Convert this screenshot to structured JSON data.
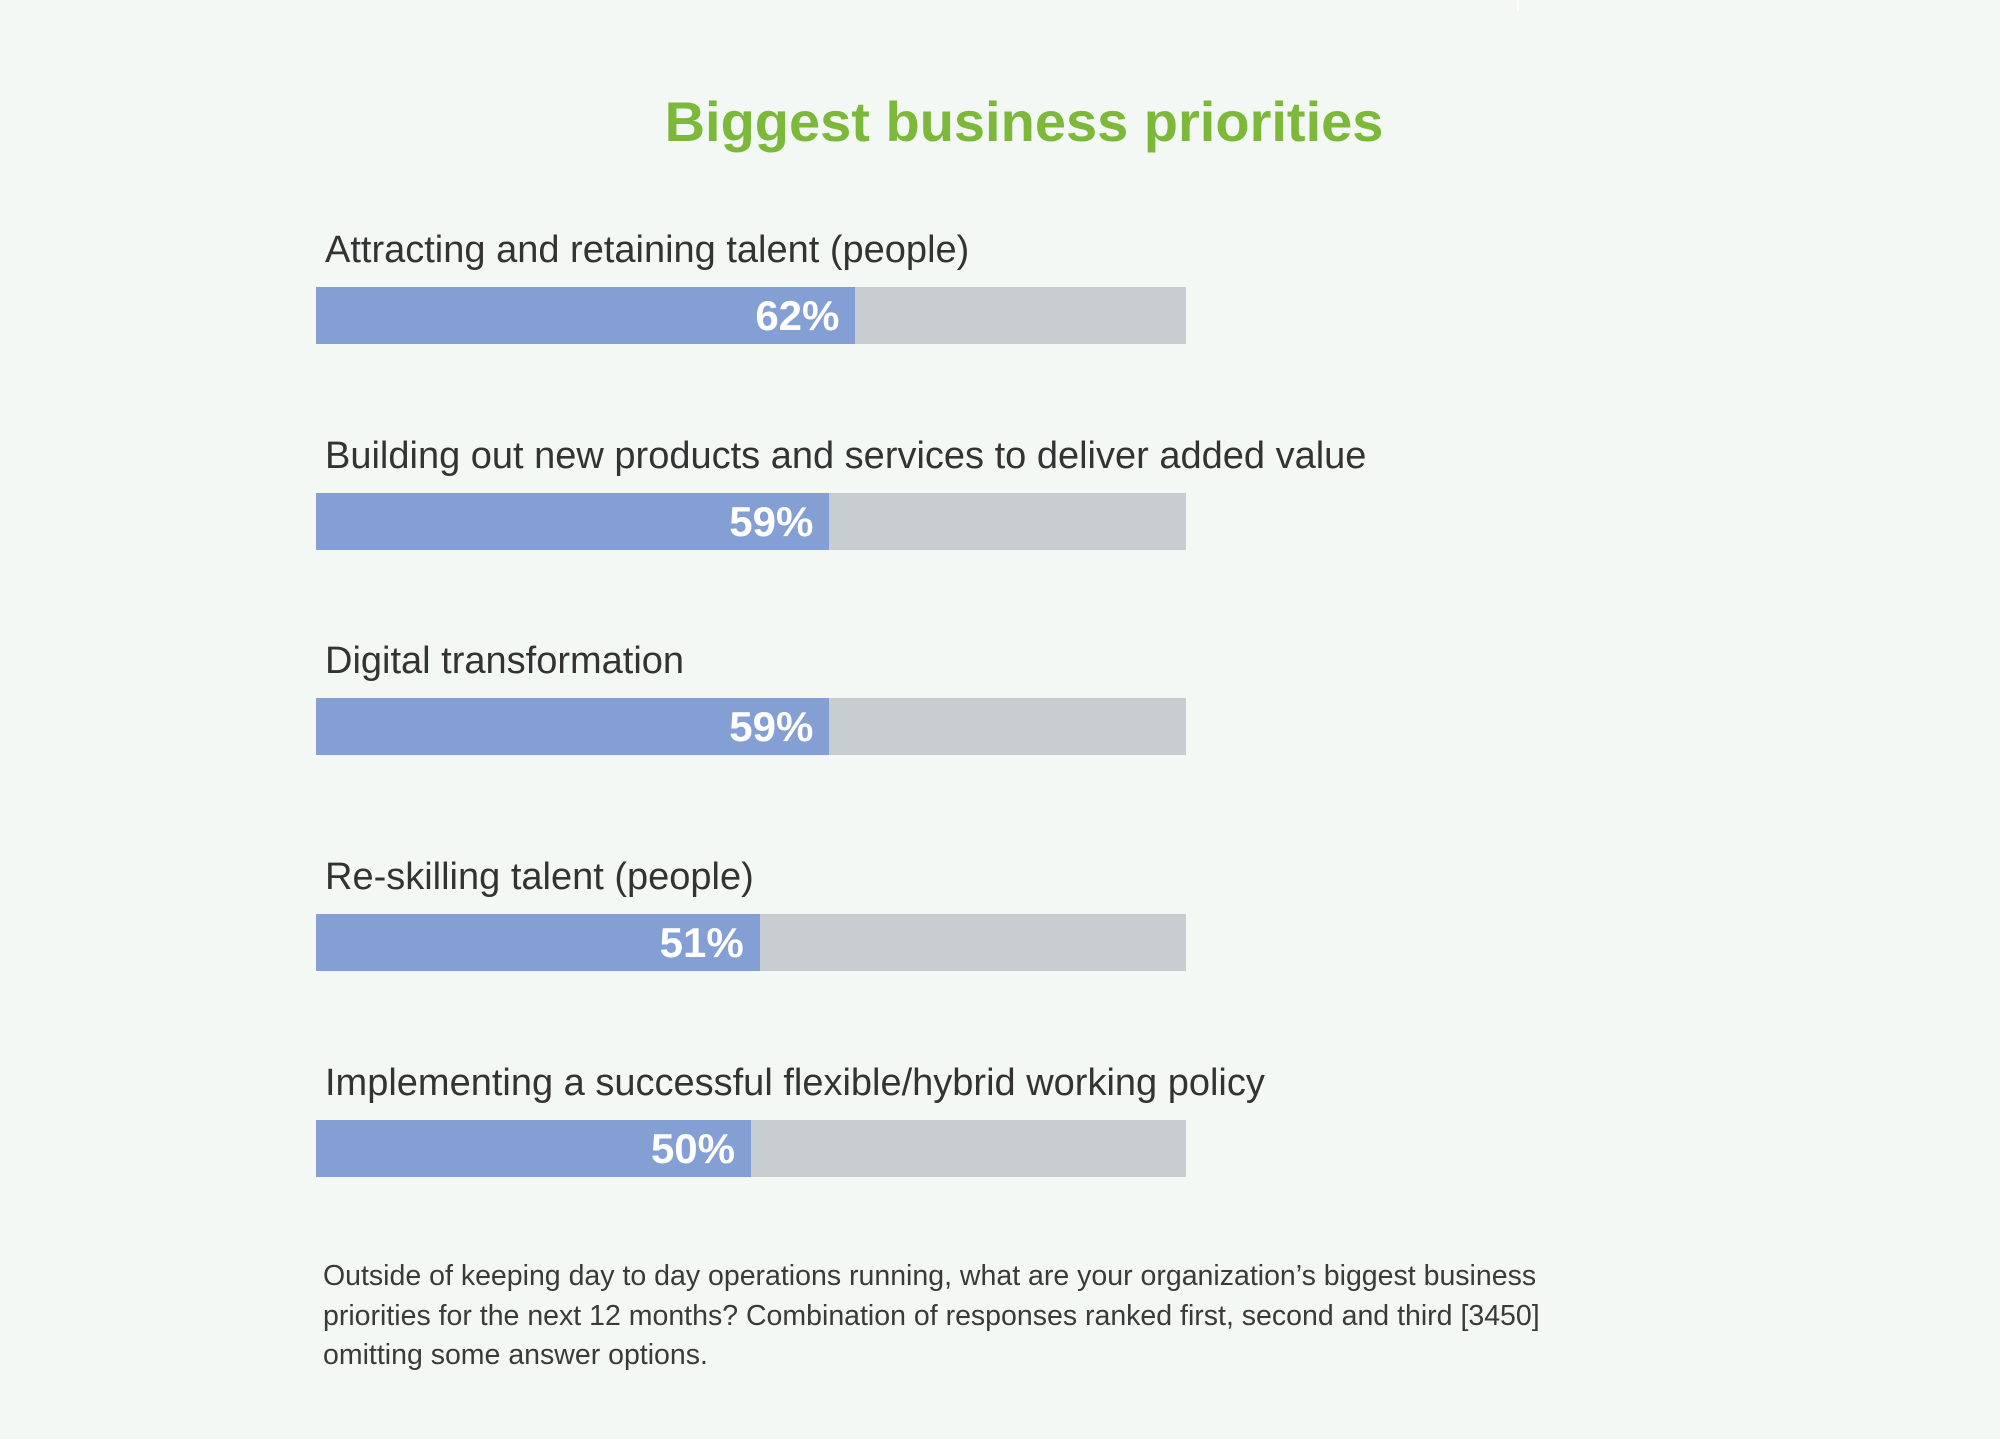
{
  "chart_data": {
    "type": "bar",
    "orientation": "horizontal",
    "title": "Biggest business priorities",
    "categories": [
      "Attracting and retaining talent (people)",
      "Building out new products and services to deliver added value",
      "Digital transformation",
      "Re-skilling talent (people)",
      "Implementing a successful flexible/hybrid working policy"
    ],
    "values": [
      62,
      59,
      59,
      51,
      50
    ],
    "value_labels": [
      "62%",
      "59%",
      "59%",
      "51%",
      "50%"
    ],
    "xlim": [
      0,
      100
    ],
    "unit": "%",
    "grid": false,
    "legend": "none",
    "colors": {
      "fill": "#849fd4",
      "track": "#c8cdd1",
      "title": "#7cb83a",
      "value_text": "#ffffff"
    }
  },
  "footnote": "Outside of keeping day to day operations running, what are your organization’s biggest business priorities for the next 12 months? Combination of responses ranked first, second and third [3450] omitting some answer options."
}
